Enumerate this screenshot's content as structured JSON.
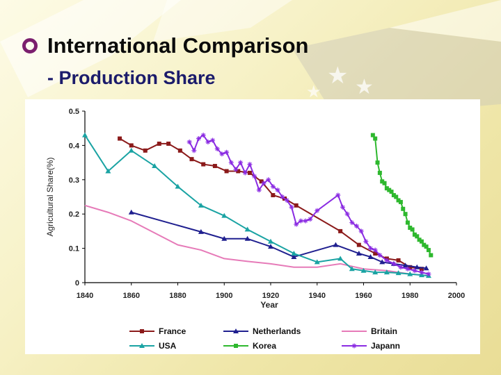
{
  "slide": {
    "title": "International Comparison",
    "subtitle": "- Production Share"
  },
  "colors": {
    "bullet": "#7b1f6e",
    "subtitle": "#1b1b6b"
  },
  "chart_data": {
    "type": "line",
    "title": "",
    "xlabel": "Year",
    "ylabel": "Agricultural Share(%)",
    "xlim": [
      1840,
      2000
    ],
    "ylim": [
      0,
      0.5
    ],
    "xticks": [
      1840,
      1860,
      1880,
      1900,
      1920,
      1940,
      1960,
      1980,
      2000
    ],
    "yticks": [
      0,
      0.1,
      0.2,
      0.3,
      0.4,
      0.5
    ],
    "ytick_labels": [
      "0",
      "0.1",
      "0.2",
      "0.3",
      "0.4",
      "0.5"
    ],
    "grid": false,
    "legend_position": "bottom",
    "series": [
      {
        "name": "France",
        "color": "#8b1a1a",
        "marker": "square",
        "x": [
          1855,
          1860,
          1866,
          1872,
          1876,
          1881,
          1886,
          1891,
          1896,
          1901,
          1906,
          1911,
          1916,
          1921,
          1926,
          1931,
          1950,
          1958,
          1965,
          1970,
          1975,
          1980,
          1985
        ],
        "y": [
          0.42,
          0.4,
          0.385,
          0.405,
          0.405,
          0.385,
          0.36,
          0.345,
          0.34,
          0.325,
          0.325,
          0.32,
          0.295,
          0.255,
          0.245,
          0.225,
          0.15,
          0.11,
          0.085,
          0.07,
          0.065,
          0.045,
          0.04
        ]
      },
      {
        "name": "Netherlands",
        "color": "#1f1f8f",
        "marker": "triangle",
        "x": [
          1860,
          1890,
          1900,
          1910,
          1920,
          1930,
          1948,
          1958,
          1963,
          1968,
          1973,
          1978,
          1983,
          1987
        ],
        "y": [
          0.205,
          0.148,
          0.128,
          0.128,
          0.105,
          0.075,
          0.11,
          0.085,
          0.075,
          0.06,
          0.055,
          0.05,
          0.045,
          0.042
        ]
      },
      {
        "name": "Britain",
        "color": "#e67ab8",
        "marker": "none",
        "x": [
          1840,
          1850,
          1860,
          1870,
          1880,
          1890,
          1900,
          1910,
          1920,
          1930,
          1940,
          1950,
          1960,
          1970,
          1980,
          1988
        ],
        "y": [
          0.225,
          0.205,
          0.18,
          0.145,
          0.11,
          0.095,
          0.07,
          0.062,
          0.055,
          0.045,
          0.045,
          0.055,
          0.04,
          0.035,
          0.025,
          0.02
        ]
      },
      {
        "name": "USA",
        "color": "#1aa3a3",
        "marker": "triangle",
        "x": [
          1840,
          1850,
          1860,
          1870,
          1880,
          1890,
          1900,
          1910,
          1920,
          1930,
          1940,
          1950,
          1955,
          1960,
          1965,
          1970,
          1975,
          1980,
          1985,
          1988
        ],
        "y": [
          0.43,
          0.325,
          0.385,
          0.34,
          0.28,
          0.225,
          0.195,
          0.155,
          0.12,
          0.085,
          0.06,
          0.07,
          0.04,
          0.035,
          0.03,
          0.03,
          0.028,
          0.025,
          0.022,
          0.02
        ]
      },
      {
        "name": "Korea",
        "color": "#2eb82e",
        "marker": "square",
        "x": [
          1964,
          1965,
          1966,
          1967,
          1968,
          1969,
          1970,
          1971,
          1972,
          1973,
          1974,
          1975,
          1976,
          1977,
          1978,
          1979,
          1980,
          1981,
          1982,
          1983,
          1984,
          1985,
          1986,
          1987,
          1988,
          1989
        ],
        "y": [
          0.43,
          0.42,
          0.35,
          0.32,
          0.295,
          0.29,
          0.275,
          0.27,
          0.265,
          0.255,
          0.25,
          0.24,
          0.235,
          0.215,
          0.2,
          0.175,
          0.16,
          0.155,
          0.14,
          0.135,
          0.125,
          0.12,
          0.11,
          0.105,
          0.095,
          0.08
        ]
      },
      {
        "name": "Japann",
        "color": "#8a2be2",
        "marker": "star",
        "x": [
          1885,
          1887,
          1889,
          1891,
          1893,
          1895,
          1897,
          1899,
          1901,
          1903,
          1905,
          1907,
          1909,
          1911,
          1913,
          1915,
          1917,
          1919,
          1921,
          1923,
          1925,
          1927,
          1929,
          1931,
          1933,
          1935,
          1937,
          1940,
          1949,
          1951,
          1953,
          1955,
          1957,
          1959,
          1961,
          1963,
          1965,
          1967,
          1970,
          1973,
          1976,
          1979,
          1982,
          1985,
          1988
        ],
        "y": [
          0.41,
          0.385,
          0.42,
          0.43,
          0.41,
          0.415,
          0.39,
          0.375,
          0.38,
          0.35,
          0.33,
          0.35,
          0.32,
          0.345,
          0.31,
          0.27,
          0.29,
          0.3,
          0.28,
          0.27,
          0.25,
          0.24,
          0.22,
          0.17,
          0.18,
          0.18,
          0.185,
          0.21,
          0.255,
          0.22,
          0.2,
          0.175,
          0.165,
          0.15,
          0.12,
          0.1,
          0.095,
          0.08,
          0.065,
          0.055,
          0.045,
          0.04,
          0.035,
          0.03,
          0.025
        ]
      }
    ]
  }
}
